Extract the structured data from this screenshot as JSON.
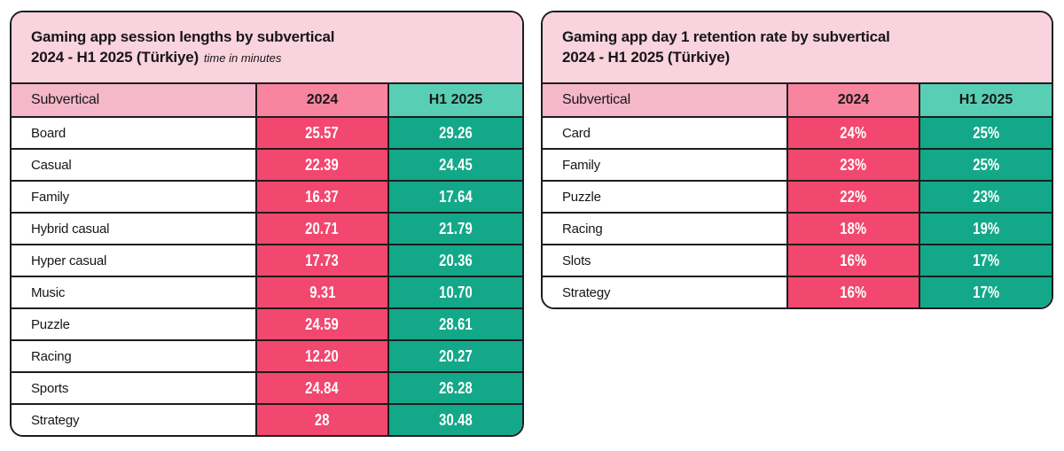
{
  "colors": {
    "title_band": "#f9d3de",
    "header_label": "#f5b7ca",
    "header_2024": "#f8849f",
    "header_h1_2025": "#58cfb5",
    "cell_2024": "#f2476f",
    "cell_h1_2025": "#14a88a",
    "border": "#1d1d1d"
  },
  "tables": [
    {
      "title_line1": "Gaming app session lengths by subvertical",
      "title_line2": "2024 - H1 2025 (Türkiye)",
      "title_note": "time in minutes",
      "columns": [
        "Subvertical",
        "2024",
        "H1 2025"
      ],
      "rows": [
        {
          "label": "Board",
          "y2024": "25.57",
          "h1_2025": "29.26"
        },
        {
          "label": "Casual",
          "y2024": "22.39",
          "h1_2025": "24.45"
        },
        {
          "label": "Family",
          "y2024": "16.37",
          "h1_2025": "17.64"
        },
        {
          "label": "Hybrid casual",
          "y2024": "20.71",
          "h1_2025": "21.79"
        },
        {
          "label": "Hyper casual",
          "y2024": "17.73",
          "h1_2025": "20.36"
        },
        {
          "label": "Music",
          "y2024": "9.31",
          "h1_2025": "10.70"
        },
        {
          "label": "Puzzle",
          "y2024": "24.59",
          "h1_2025": "28.61"
        },
        {
          "label": "Racing",
          "y2024": "12.20",
          "h1_2025": "20.27"
        },
        {
          "label": "Sports",
          "y2024": "24.84",
          "h1_2025": "26.28"
        },
        {
          "label": "Strategy",
          "y2024": "28",
          "h1_2025": "30.48"
        }
      ]
    },
    {
      "title_line1": "Gaming app day 1 retention rate by subvertical",
      "title_line2": "2024 - H1 2025 (Türkiye)",
      "title_note": "",
      "columns": [
        "Subvertical",
        "2024",
        "H1 2025"
      ],
      "rows": [
        {
          "label": "Card",
          "y2024": "24%",
          "h1_2025": "25%"
        },
        {
          "label": "Family",
          "y2024": "23%",
          "h1_2025": "25%"
        },
        {
          "label": "Puzzle",
          "y2024": "22%",
          "h1_2025": "23%"
        },
        {
          "label": "Racing",
          "y2024": "18%",
          "h1_2025": "19%"
        },
        {
          "label": "Slots",
          "y2024": "16%",
          "h1_2025": "17%"
        },
        {
          "label": "Strategy",
          "y2024": "16%",
          "h1_2025": "17%"
        }
      ]
    }
  ],
  "chart_data": [
    {
      "type": "table",
      "title": "Gaming app session lengths by subvertical 2024 - H1 2025 (Türkiye)",
      "subtitle": "time in minutes",
      "columns": [
        "Subvertical",
        "2024",
        "H1 2025"
      ],
      "rows": [
        [
          "Board",
          25.57,
          29.26
        ],
        [
          "Casual",
          22.39,
          24.45
        ],
        [
          "Family",
          16.37,
          17.64
        ],
        [
          "Hybrid casual",
          20.71,
          21.79
        ],
        [
          "Hyper casual",
          17.73,
          20.36
        ],
        [
          "Music",
          9.31,
          10.7
        ],
        [
          "Puzzle",
          24.59,
          28.61
        ],
        [
          "Racing",
          12.2,
          20.27
        ],
        [
          "Sports",
          24.84,
          26.28
        ],
        [
          "Strategy",
          28,
          30.48
        ]
      ]
    },
    {
      "type": "table",
      "title": "Gaming app day 1 retention rate by subvertical 2024 - H1 2025 (Türkiye)",
      "columns": [
        "Subvertical",
        "2024",
        "H1 2025"
      ],
      "rows": [
        [
          "Card",
          "24%",
          "25%"
        ],
        [
          "Family",
          "23%",
          "25%"
        ],
        [
          "Puzzle",
          "22%",
          "23%"
        ],
        [
          "Racing",
          "18%",
          "19%"
        ],
        [
          "Slots",
          "16%",
          "17%"
        ],
        [
          "Strategy",
          "16%",
          "17%"
        ]
      ]
    }
  ]
}
